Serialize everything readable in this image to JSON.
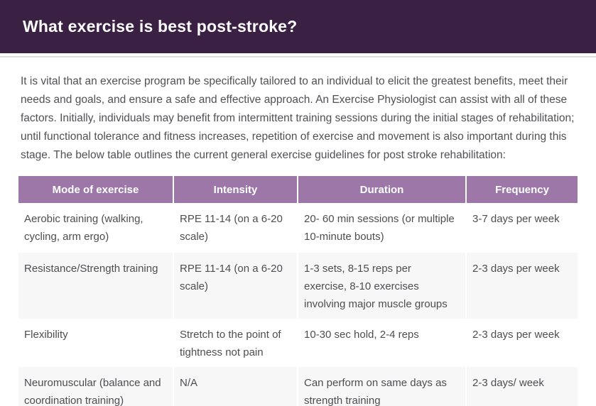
{
  "page": {
    "title": "What exercise is best post-stroke?",
    "intro": "It is vital that an exercise program be specifically tailored to an individual to elicit the greatest benefits, meet their needs and goals, and ensure a safe and effective approach. An Exercise Physiologist can assist with all of these factors. Initially, individuals may benefit from intermittent training sessions during the initial stages of rehabilitation; until functional tolerance and fitness increases, repetition of exercise and movement is also important during this stage. The below table outlines the current general exercise guidelines for post stroke rehabilitation:"
  },
  "colors": {
    "titlebar_bg": "#3a2144",
    "titlebar_text": "#fdfcfd",
    "table_header_bg": "#9c77a8",
    "table_header_text": "#ffffff",
    "row_alt_bg": "#f7f7f8",
    "body_text": "#515155"
  },
  "table": {
    "columns": [
      "Mode of exercise",
      "Intensity",
      "Duration",
      "Frequency"
    ],
    "rows": [
      [
        "Aerobic training (walking, cycling, arm ergo)",
        "RPE 11-14 (on a 6-20 scale)",
        "20- 60 min sessions (or multiple 10-minute bouts)",
        "3-7 days per week"
      ],
      [
        "Resistance/Strength training",
        "RPE 11-14 (on a 6-20 scale)",
        "1-3 sets, 8-15 reps per exercise, 8-10 exercises involving major muscle groups",
        "2-3 days per week"
      ],
      [
        "Flexibility",
        "Stretch to the point of tightness not pain",
        "10-30 sec hold, 2-4 reps",
        "2-3 days per week"
      ],
      [
        "Neuromuscular (balance and coordination training)",
        "N/A",
        "Can perform on same days as strength training",
        "2-3 days/ week"
      ]
    ]
  }
}
